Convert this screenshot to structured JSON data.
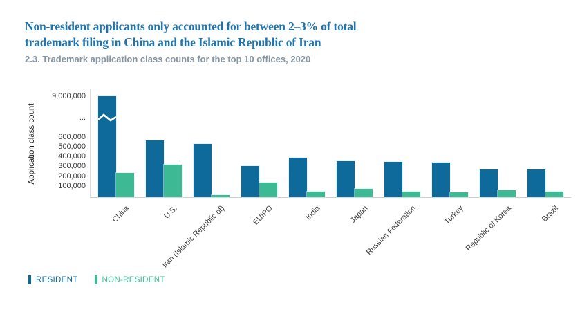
{
  "header": {
    "title_lines": [
      "Non-resident applicants only accounted for between 2–3% of total",
      "trademark filing in China and the Islamic Republic of Iran"
    ],
    "subtitle": "2.3. Trademark application class counts for the top 10 offices, 2020"
  },
  "chart_data": {
    "type": "bar",
    "title": "2.3. Trademark application class counts for the top 10 offices, 2020",
    "xlabel": "",
    "ylabel": "Application class count",
    "categories": [
      "China",
      "U.S.",
      "Iran (Islamic Republic of)",
      "EUIPO",
      "India",
      "Japan",
      "Russian Federation",
      "Turkey",
      "Republic of Korea",
      "Brazil"
    ],
    "series": [
      {
        "name": "RESIDENT",
        "color": "#0e6a9b",
        "values": [
          9100000,
          560000,
          530000,
          305000,
          385000,
          350000,
          345000,
          335000,
          270000,
          265000
        ]
      },
      {
        "name": "NON-RESIDENT",
        "color": "#3dba93",
        "values": [
          230000,
          320000,
          10000,
          135000,
          40000,
          70000,
          45000,
          35000,
          55000,
          40000
        ]
      }
    ],
    "y_ticks": [
      "9,000,000",
      "...",
      "600,000",
      "500,000",
      "400,000",
      "300,000",
      "200,000",
      "100,000"
    ],
    "axis_break": true,
    "break_above": 650000,
    "ylim_linear": [
      0,
      650000
    ],
    "x_tick_rotation": 45,
    "grid": false,
    "legend_position": "bottom-left"
  },
  "legend": {
    "items": [
      {
        "label": "RESIDENT",
        "color": "#0e6a9b"
      },
      {
        "label": "NON-RESIDENT",
        "color": "#3dba93"
      }
    ]
  },
  "colors": {
    "title": "#1f74ad",
    "subtitle": "#8595a3",
    "axis_line": "#cfcfcf",
    "tick_text": "#3a3a3a",
    "background": "#ffffff",
    "resident": "#0e6a9b",
    "non_resident": "#3dba93"
  }
}
